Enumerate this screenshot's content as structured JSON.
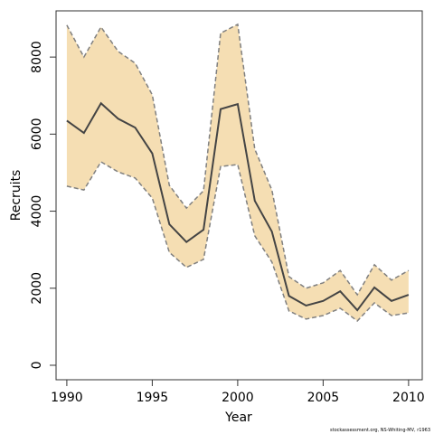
{
  "chart_data": {
    "type": "line",
    "x_label": "Year",
    "y_label": "Recruits",
    "footnote": "stockassessment.org, NS-Whiting-MV, r1963",
    "x": [
      1990,
      1991,
      1992,
      1993,
      1994,
      1995,
      1996,
      1997,
      1998,
      1999,
      2000,
      2001,
      2002,
      2003,
      2004,
      2005,
      2006,
      2007,
      2008,
      2009,
      2010
    ],
    "values": [
      6350,
      6030,
      6800,
      6400,
      6170,
      5500,
      3660,
      3200,
      3520,
      6650,
      6780,
      4270,
      3470,
      1800,
      1550,
      1670,
      1920,
      1430,
      2020,
      1670,
      1830
    ],
    "upper": [
      8830,
      8000,
      8780,
      8150,
      7840,
      7020,
      4670,
      4080,
      4530,
      8620,
      8850,
      5610,
      4550,
      2300,
      2000,
      2140,
      2460,
      1830,
      2610,
      2210,
      2460
    ],
    "lower": [
      4650,
      4550,
      5280,
      5020,
      4860,
      4340,
      2930,
      2540,
      2750,
      5160,
      5210,
      3360,
      2680,
      1410,
      1200,
      1290,
      1480,
      1150,
      1620,
      1290,
      1360
    ],
    "color": "#444444",
    "band_color": "#f5deb3",
    "band_line_color": "#808080",
    "xlim": [
      1989.37,
      2010.8
    ],
    "ylim": [
      -376,
      9200
    ],
    "xticks": [
      1990,
      1995,
      2000,
      2005,
      2010
    ],
    "yticks": [
      0,
      2000,
      4000,
      6000,
      8000
    ]
  }
}
